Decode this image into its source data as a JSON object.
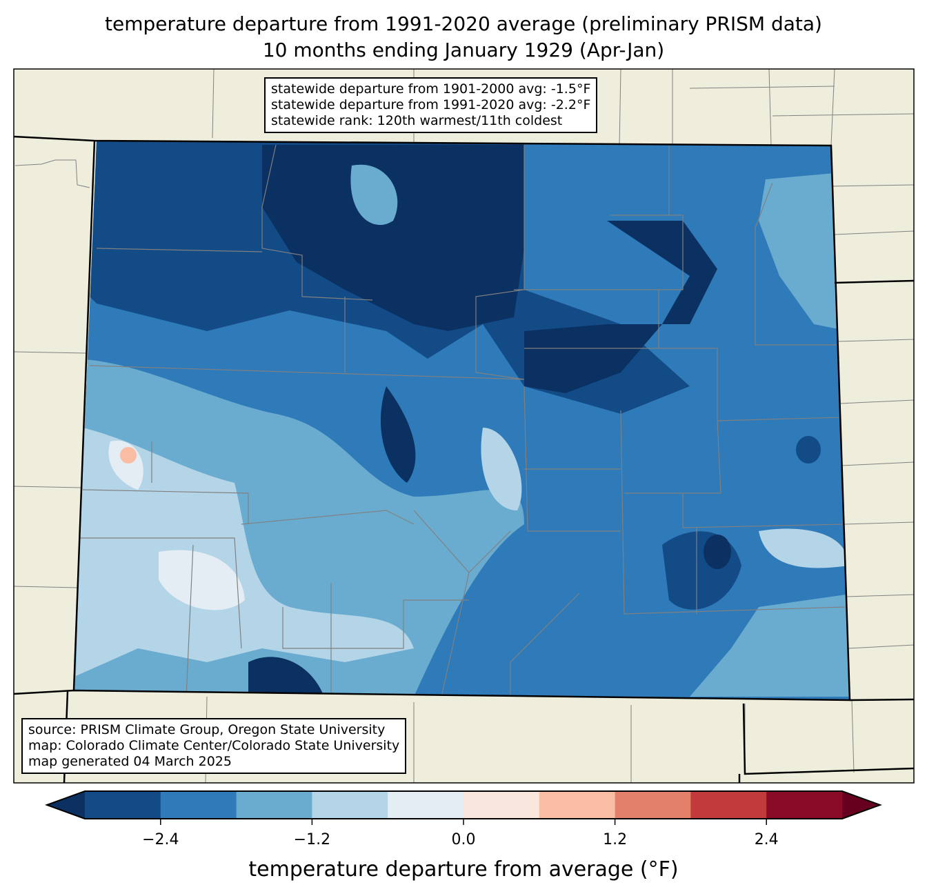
{
  "title": {
    "line1": "temperature departure from 1991-2020 average (preliminary PRISM data)",
    "line2": "10 months ending January 1929 (Apr-Jan)"
  },
  "stats_box": {
    "lines": [
      "statewide departure from 1901-2000 avg: -1.5°F",
      "statewide departure from 1991-2020 avg: -2.2°F",
      "statewide rank: 120th warmest/11th coldest"
    ]
  },
  "source_box": {
    "lines": [
      "source: PRISM Climate Group, Oregon State University",
      "map: Colorado Climate Center/Colorado State University",
      "map generated 04 March 2025"
    ]
  },
  "colorbar": {
    "label": "temperature departure from average (°F)",
    "range": [
      -3.0,
      3.0
    ],
    "bins": [
      "#134b87",
      "#2f7ab9",
      "#6aacd0",
      "#b3d5e7",
      "#e4edf3",
      "#f9e7dd",
      "#f9bda4",
      "#e3806a",
      "#c13b3c",
      "#8a0b25"
    ],
    "extend_low_color": "#0a3162",
    "extend_high_color": "#67001f",
    "ticks": [
      "−2.4",
      "−1.2",
      "0.0",
      "1.2",
      "2.4"
    ],
    "tick_values": [
      -2.4,
      -1.2,
      0.0,
      1.2,
      2.4
    ]
  },
  "colors": {
    "land": "#efeedc",
    "county_lines": "#808080",
    "state_lines": "#000000"
  }
}
